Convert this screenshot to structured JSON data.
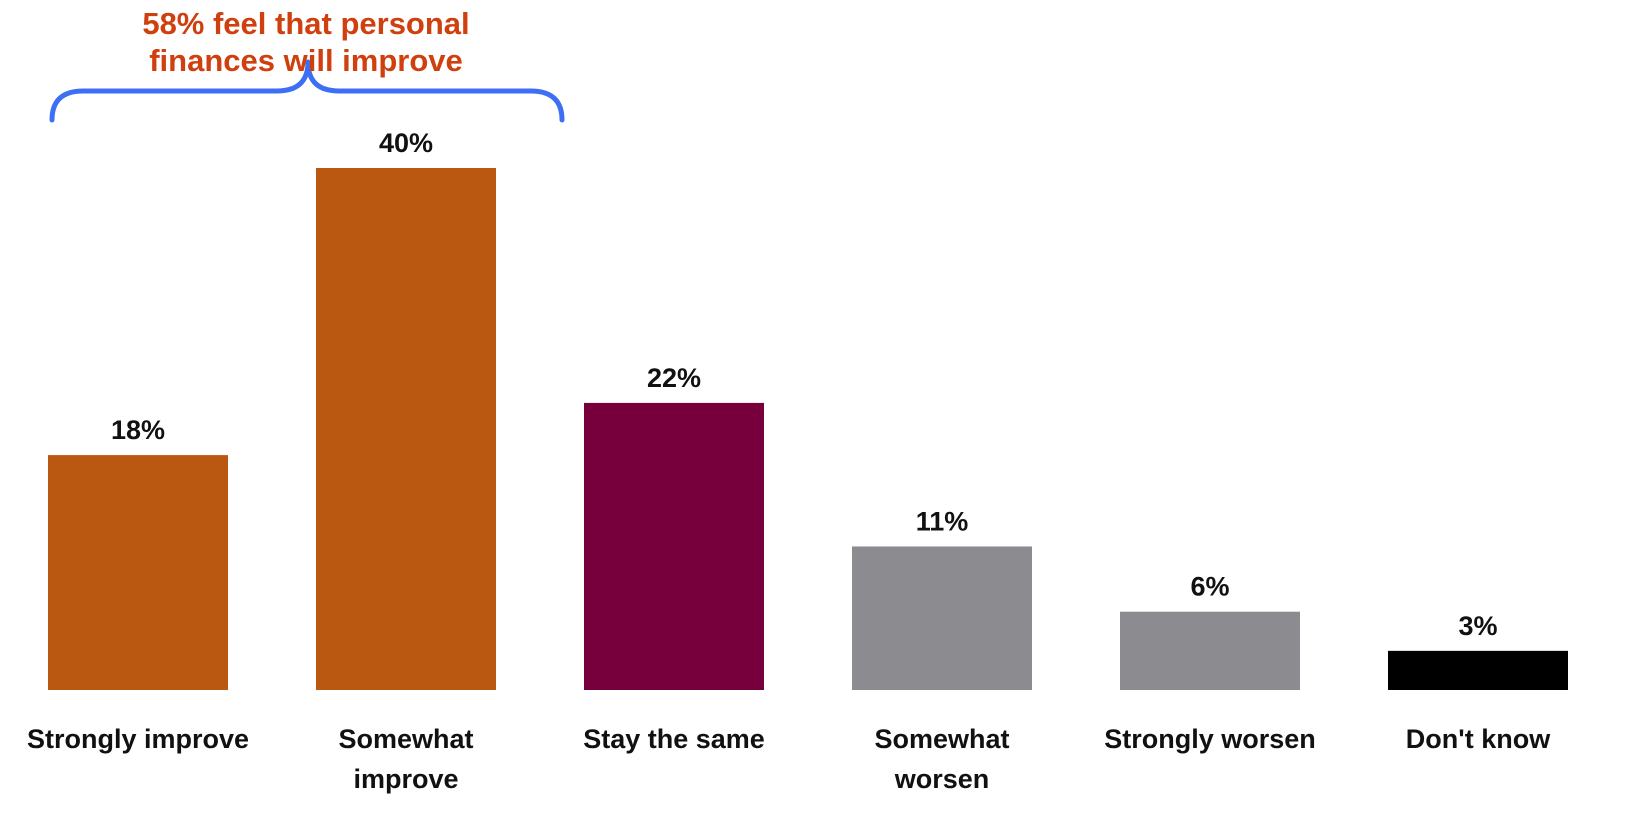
{
  "chart_data": {
    "type": "bar",
    "title": "",
    "xlabel": "",
    "ylabel": "",
    "categories": [
      [
        "Strongly improve"
      ],
      [
        "Somewhat",
        "improve"
      ],
      [
        "Stay the same"
      ],
      [
        "Somewhat",
        "worsen"
      ],
      [
        "Strongly worsen"
      ],
      [
        "Don't know"
      ]
    ],
    "values": [
      18,
      40,
      22,
      11,
      6,
      3
    ],
    "value_labels": [
      "18%",
      "40%",
      "22%",
      "11%",
      "6%",
      "3%"
    ],
    "bar_colors": [
      "#BA5812",
      "#BA5812",
      "#77003C",
      "#8C8B90",
      "#8C8B90",
      "#000000"
    ],
    "ylim": [
      0,
      40
    ],
    "grid": false,
    "annotation": {
      "lines": [
        "58% feel that personal",
        "finances will improve"
      ],
      "color": "#D0400E",
      "bracket_color": "#3D6FF5",
      "spans_categories": [
        0,
        1
      ]
    }
  }
}
